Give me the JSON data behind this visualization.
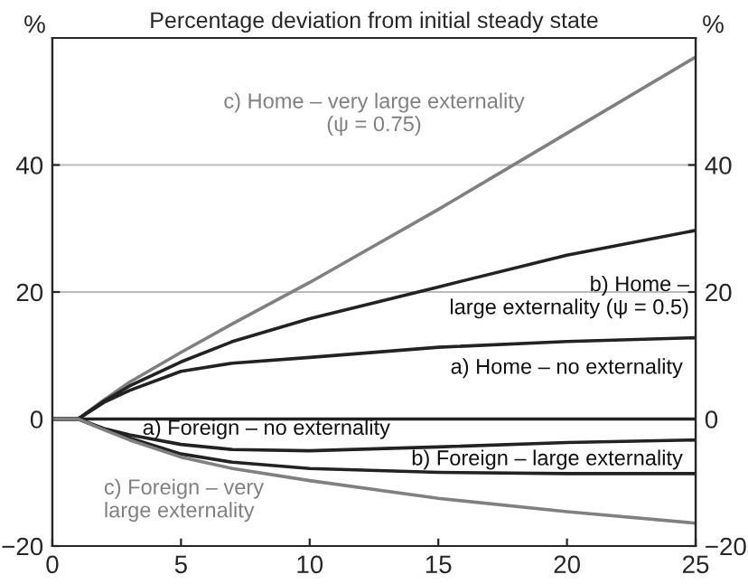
{
  "chart_data": {
    "type": "line",
    "title": "Percentage deviation from initial steady state",
    "ylabel": "%",
    "y2label": "%",
    "x": [
      0,
      1,
      2,
      3,
      5,
      7,
      10,
      15,
      20,
      25
    ],
    "series": [
      {
        "name": "c) Home – very large externality\n(ψ = 0.75)",
        "color": "#808080",
        "values": [
          0,
          0,
          3,
          5.8,
          10.5,
          15,
          21.5,
          33,
          45,
          57
        ]
      },
      {
        "name": "b) Home –\nlarge externality (ψ = 0.5)",
        "color": "#222222",
        "values": [
          0,
          0,
          2.8,
          5.2,
          9,
          12.2,
          15.8,
          20.8,
          25.8,
          29.7
        ]
      },
      {
        "name": "a) Home – no externality",
        "color": "#222222",
        "values": [
          0,
          0,
          2.6,
          4.5,
          7.5,
          8.8,
          9.7,
          11.3,
          12.2,
          12.8
        ]
      },
      {
        "name": "a) Foreign – no externality",
        "color": "#222222",
        "values": [
          0,
          0,
          -1.5,
          -2.5,
          -4,
          -4.8,
          -5,
          -4.4,
          -3.7,
          -3.3
        ]
      },
      {
        "name": "b) Foreign – large externality",
        "color": "#222222",
        "values": [
          0,
          0,
          -1.6,
          -3,
          -5.5,
          -6.8,
          -7.8,
          -8.4,
          -8.6,
          -8.6
        ]
      },
      {
        "name": "c) Foreign – very\nlarge externality",
        "color": "#808080",
        "values": [
          0,
          0,
          -1.7,
          -3.3,
          -6,
          -7.8,
          -9.7,
          -12.5,
          -14.6,
          -16.4
        ]
      }
    ],
    "ref_lines": [
      {
        "axis": "y",
        "value": 0,
        "color": "#222222"
      }
    ],
    "xlim": [
      0,
      25
    ],
    "xticks": [
      0,
      5,
      10,
      15,
      20,
      25
    ],
    "ylim": [
      -20,
      60
    ],
    "yticks": [
      {
        "value": -20,
        "label": "−20"
      },
      0,
      20,
      40
    ],
    "y2lim": [
      -20,
      60
    ],
    "y2ticks": [
      {
        "value": -20,
        "label": "−20"
      },
      0,
      20,
      40
    ],
    "grid": "y",
    "legend": false,
    "marker": "none",
    "line_style": "solid"
  }
}
